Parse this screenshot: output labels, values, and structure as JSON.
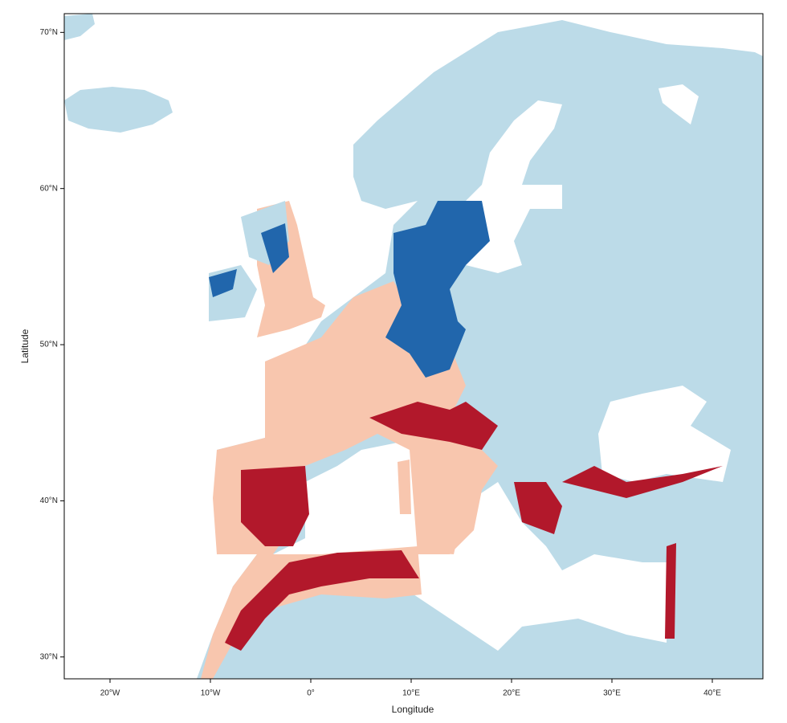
{
  "chart_data": {
    "type": "map",
    "xlabel": "Longitude",
    "ylabel": "Latitude",
    "xlim": [
      -24.56,
      45.04
    ],
    "ylim": [
      28.6,
      71.2
    ],
    "xticks": [
      {
        "value": -20,
        "label": "20°W"
      },
      {
        "value": -10,
        "label": "10°W"
      },
      {
        "value": 0,
        "label": "0°"
      },
      {
        "value": 10,
        "label": "10°E"
      },
      {
        "value": 20,
        "label": "20°E"
      },
      {
        "value": 30,
        "label": "30°E"
      },
      {
        "value": 40,
        "label": "40°E"
      }
    ],
    "yticks": [
      {
        "value": 30,
        "label": "30°N"
      },
      {
        "value": 40,
        "label": "40°N"
      },
      {
        "value": 50,
        "label": "50°N"
      },
      {
        "value": 60,
        "label": "60°N"
      },
      {
        "value": 70,
        "label": "70°N"
      }
    ]
  }
}
